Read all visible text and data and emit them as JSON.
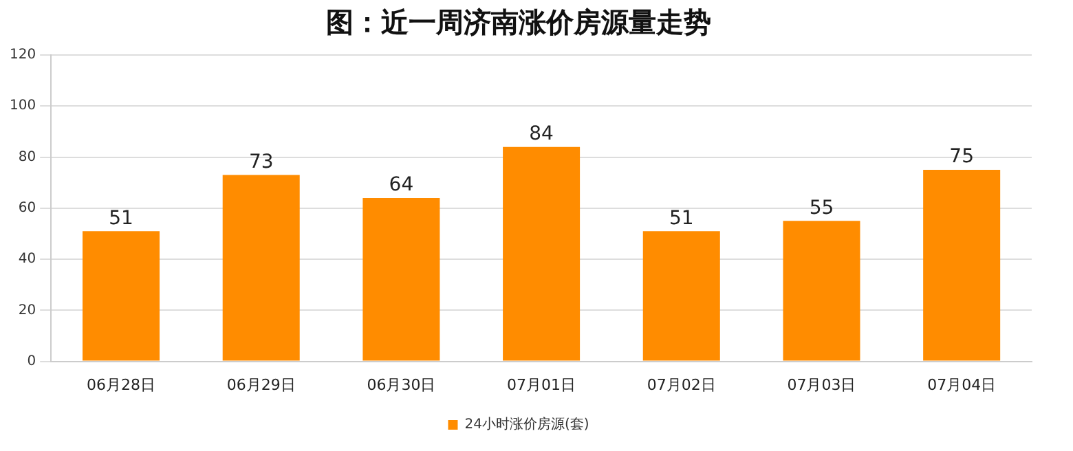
{
  "chart_data": {
    "type": "bar",
    "title": "图：近一周济南涨价房源量走势",
    "categories": [
      "06月28日",
      "06月29日",
      "06月30日",
      "07月01日",
      "07月02日",
      "07月03日",
      "07月04日"
    ],
    "series": [
      {
        "name": "24小时涨价房源(套)",
        "color": "#ff8c00",
        "values": [
          51,
          73,
          64,
          84,
          51,
          55,
          75
        ]
      }
    ],
    "ylim": [
      0,
      120
    ],
    "yticks": [
      0,
      20,
      40,
      60,
      80,
      100,
      120
    ],
    "grid": "y",
    "legend": "bottom",
    "data_labels": true
  }
}
